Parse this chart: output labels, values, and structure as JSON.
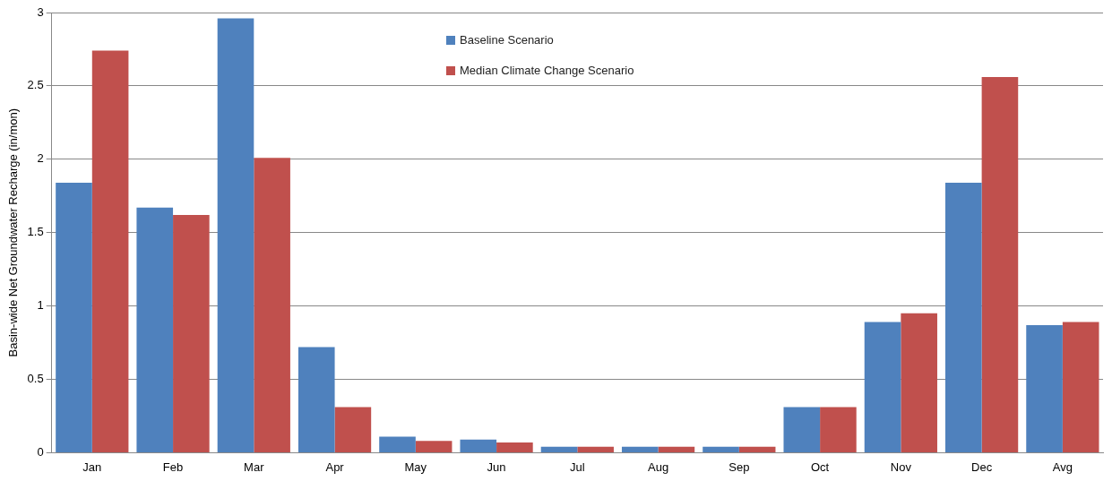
{
  "chart_data": {
    "type": "bar",
    "ylabel": "Basin-wide Net Groundwater Recharge (in/mon)",
    "categories": [
      "Jan",
      "Feb",
      "Mar",
      "Apr",
      "May",
      "Jun",
      "Jul",
      "Aug",
      "Sep",
      "Oct",
      "Nov",
      "Dec",
      "Avg"
    ],
    "series": [
      {
        "name": "Baseline Scenario",
        "color": "#4f81bd",
        "values": [
          1.84,
          1.67,
          2.96,
          0.72,
          0.11,
          0.09,
          0.04,
          0.04,
          0.04,
          0.31,
          0.89,
          1.84,
          0.87
        ]
      },
      {
        "name": "Median Climate Change Scenario",
        "color": "#c0504d",
        "values": [
          2.74,
          1.62,
          2.01,
          0.31,
          0.08,
          0.07,
          0.04,
          0.04,
          0.04,
          0.31,
          0.95,
          2.56,
          0.89
        ]
      }
    ],
    "ylim": [
      0,
      3
    ],
    "yticks": [
      0,
      0.5,
      1,
      1.5,
      2,
      2.5,
      3
    ],
    "grid": "y",
    "legend": "top"
  }
}
